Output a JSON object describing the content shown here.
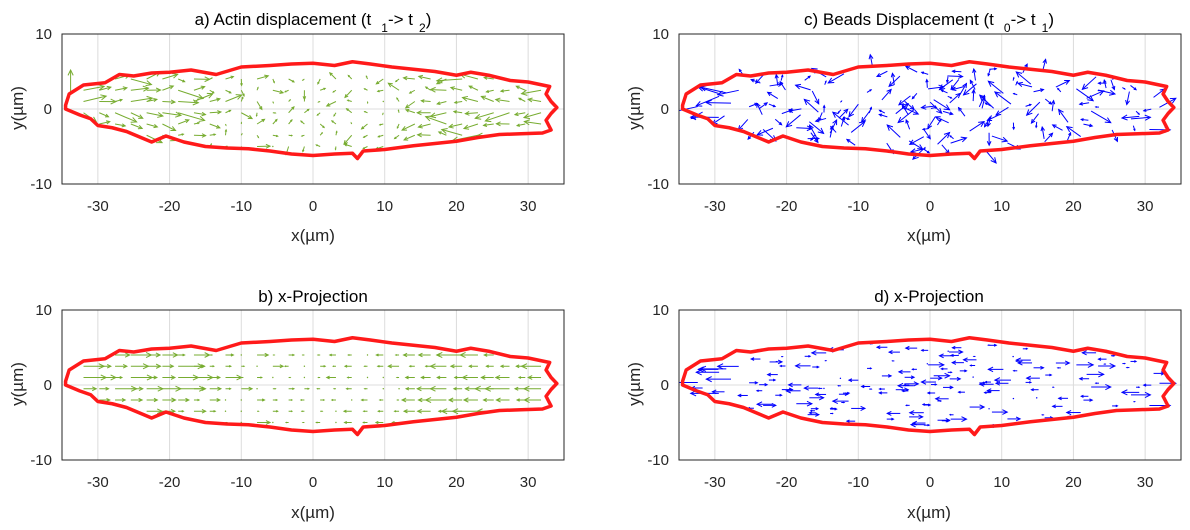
{
  "colors": {
    "actin": "#77ac30",
    "beads": "#0000ff",
    "outline": "#ff1a1a"
  },
  "chart_data": [
    {
      "type": "quiver",
      "title": {
        "main": "a) Actin displacement (t",
        "sub1": "1",
        "mid": "-> t",
        "sub2": "2",
        "end": ")"
      },
      "xlabel": "x(µm)",
      "ylabel": "y(µm)",
      "xlim": [
        -35,
        35
      ],
      "ylim": [
        -10,
        10
      ],
      "xticks": [
        -30,
        -20,
        -10,
        0,
        10,
        20,
        30
      ],
      "yticks": [
        -10,
        0,
        10
      ],
      "xtick_labels": [
        "-30",
        "-20",
        "-10",
        "0",
        "10",
        "20",
        "30"
      ],
      "ytick_labels": [
        "-10",
        "0",
        "10"
      ],
      "grid": true,
      "color_key": "actin",
      "projection": "full"
    },
    {
      "type": "quiver",
      "title": {
        "main": "c) Beads Displacement (t",
        "sub1": "0",
        "mid": "-> t",
        "sub2": "1",
        "end": ")"
      },
      "xlabel": "x(µm)",
      "ylabel": "y(µm)",
      "xlim": [
        -35,
        35
      ],
      "ylim": [
        -10,
        10
      ],
      "xticks": [
        -30,
        -20,
        -10,
        0,
        10,
        20,
        30
      ],
      "yticks": [
        -10,
        0,
        10
      ],
      "xtick_labels": [
        "-30",
        "-20",
        "-10",
        "0",
        "10",
        "20",
        "30"
      ],
      "ytick_labels": [
        "-10",
        "0",
        "10"
      ],
      "grid": true,
      "color_key": "beads",
      "projection": "full"
    },
    {
      "type": "quiver",
      "title": {
        "main": "b) x-Projection",
        "sub1": "",
        "mid": "",
        "sub2": "",
        "end": ""
      },
      "xlabel": "x(µm)",
      "ylabel": "y(µm)",
      "xlim": [
        -35,
        35
      ],
      "ylim": [
        -10,
        10
      ],
      "xticks": [
        -30,
        -20,
        -10,
        0,
        10,
        20,
        30
      ],
      "yticks": [
        -10,
        0,
        10
      ],
      "xtick_labels": [
        "-30",
        "-20",
        "-10",
        "0",
        "10",
        "20",
        "30"
      ],
      "ytick_labels": [
        "-10",
        "0",
        "10"
      ],
      "grid": true,
      "color_key": "actin",
      "projection": "x"
    },
    {
      "type": "quiver",
      "title": {
        "main": "d) x-Projection",
        "sub1": "",
        "mid": "",
        "sub2": "",
        "end": ""
      },
      "xlabel": "x(µm)",
      "ylabel": "y(µm)",
      "xlim": [
        -35,
        35
      ],
      "ylim": [
        -10,
        10
      ],
      "xticks": [
        -30,
        -20,
        -10,
        0,
        10,
        20,
        30
      ],
      "yticks": [
        -10,
        0,
        10
      ],
      "xtick_labels": [
        "-30",
        "-20",
        "-10",
        "0",
        "10",
        "20",
        "30"
      ],
      "ytick_labels": [
        "-10",
        "0",
        "10"
      ],
      "grid": true,
      "color_key": "beads",
      "projection": "x"
    }
  ],
  "cell_outline": [
    [
      -34.5,
      0.5
    ],
    [
      -34.0,
      2.0
    ],
    [
      -32.0,
      3.2
    ],
    [
      -29.0,
      3.5
    ],
    [
      -27.0,
      4.6
    ],
    [
      -25.0,
      4.4
    ],
    [
      -22.5,
      4.8
    ],
    [
      -20.0,
      4.9
    ],
    [
      -17.0,
      5.2
    ],
    [
      -13.5,
      4.6
    ],
    [
      -10.0,
      5.6
    ],
    [
      -6.0,
      5.8
    ],
    [
      -3.0,
      6.0
    ],
    [
      0.0,
      6.1
    ],
    [
      3.0,
      5.8
    ],
    [
      5.5,
      6.3
    ],
    [
      8.0,
      6.0
    ],
    [
      11.0,
      5.6
    ],
    [
      14.0,
      5.3
    ],
    [
      17.0,
      5.0
    ],
    [
      20.0,
      4.5
    ],
    [
      22.0,
      4.9
    ],
    [
      24.5,
      4.5
    ],
    [
      27.5,
      3.8
    ],
    [
      30.0,
      3.6
    ],
    [
      32.0,
      3.2
    ],
    [
      33.0,
      3.0
    ],
    [
      32.5,
      2.0
    ],
    [
      33.2,
      1.0
    ],
    [
      34.0,
      0.2
    ],
    [
      33.2,
      -0.6
    ],
    [
      32.5,
      -1.5
    ],
    [
      33.2,
      -2.8
    ],
    [
      32.0,
      -3.2
    ],
    [
      29.0,
      -3.3
    ],
    [
      26.0,
      -3.4
    ],
    [
      23.0,
      -3.8
    ],
    [
      20.0,
      -4.3
    ],
    [
      17.0,
      -4.6
    ],
    [
      14.0,
      -4.9
    ],
    [
      10.0,
      -5.4
    ],
    [
      7.0,
      -5.6
    ],
    [
      6.2,
      -6.6
    ],
    [
      5.5,
      -5.9
    ],
    [
      3.0,
      -6.0
    ],
    [
      0.0,
      -6.2
    ],
    [
      -3.0,
      -6.0
    ],
    [
      -6.0,
      -5.6
    ],
    [
      -9.0,
      -5.3
    ],
    [
      -12.0,
      -5.2
    ],
    [
      -15.0,
      -5.0
    ],
    [
      -18.0,
      -4.4
    ],
    [
      -20.5,
      -3.6
    ],
    [
      -22.5,
      -4.4
    ],
    [
      -24.0,
      -3.8
    ],
    [
      -26.0,
      -3.0
    ],
    [
      -28.0,
      -2.5
    ],
    [
      -30.0,
      -2.2
    ],
    [
      -31.0,
      -1.3
    ],
    [
      -32.5,
      -0.8
    ],
    [
      -34.5,
      0.0
    ]
  ]
}
